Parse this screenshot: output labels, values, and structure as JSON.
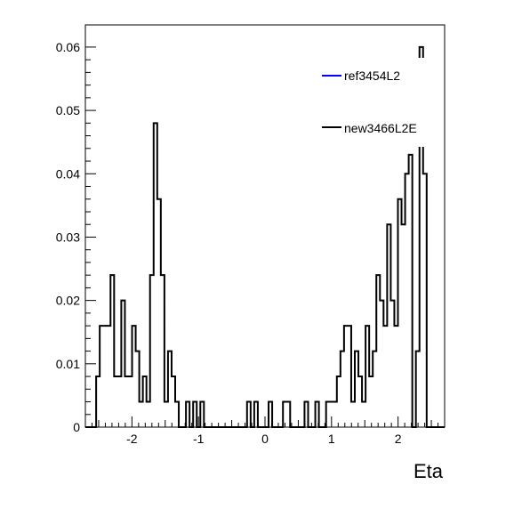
{
  "chart_data": {
    "type": "histogram",
    "xlabel": "Eta",
    "ylabel": "",
    "xlim": [
      -2.7,
      2.7
    ],
    "ylim": [
      0,
      0.0635
    ],
    "x_ticks": [
      -2,
      -1,
      0,
      1,
      2
    ],
    "x_tick_labels": [
      "-2",
      "-1",
      "0",
      "1",
      "2"
    ],
    "y_ticks": [
      0,
      0.01,
      0.02,
      0.03,
      0.04,
      0.05,
      0.06
    ],
    "y_tick_labels": [
      "0",
      "0.01",
      "0.02",
      "0.03",
      "0.04",
      "0.05",
      "0.06"
    ],
    "legend_position": "top-right",
    "bin_width": 0.054,
    "series": [
      {
        "name": "ref3454L2",
        "color": "#0000ff",
        "values": []
      },
      {
        "name": "new3466L2E",
        "color": "#000000",
        "values": [
          [
            -2.485,
            0.008
          ],
          [
            -2.431,
            0.016
          ],
          [
            -2.377,
            0.016
          ],
          [
            -2.323,
            0.016
          ],
          [
            -2.269,
            0.024
          ],
          [
            -2.215,
            0.008
          ],
          [
            -2.161,
            0.008
          ],
          [
            -2.107,
            0.02
          ],
          [
            -2.053,
            0.008
          ],
          [
            -1.999,
            0.008
          ],
          [
            -1.945,
            0.016
          ],
          [
            -1.891,
            0.012
          ],
          [
            -1.837,
            0.004
          ],
          [
            -1.783,
            0.008
          ],
          [
            -1.729,
            0.004
          ],
          [
            -1.675,
            0.024
          ],
          [
            -1.621,
            0.048
          ],
          [
            -1.567,
            0.036
          ],
          [
            -1.513,
            0.024
          ],
          [
            -1.459,
            0.004
          ],
          [
            -1.405,
            0.012
          ],
          [
            -1.351,
            0.008
          ],
          [
            -1.297,
            0.004
          ],
          [
            -1.135,
            0.004
          ],
          [
            -1.027,
            0.004
          ],
          [
            -0.919,
            0.004
          ],
          [
            -0.217,
            0.004
          ],
          [
            -0.109,
            0.004
          ],
          [
            0.107,
            0.004
          ],
          [
            0.323,
            0.004
          ],
          [
            0.377,
            0.004
          ],
          [
            0.647,
            0.004
          ],
          [
            0.809,
            0.004
          ],
          [
            0.971,
            0.004
          ],
          [
            1.025,
            0.004
          ],
          [
            1.079,
            0.004
          ],
          [
            1.133,
            0.008
          ],
          [
            1.187,
            0.012
          ],
          [
            1.241,
            0.016
          ],
          [
            1.295,
            0.016
          ],
          [
            1.349,
            0.004
          ],
          [
            1.403,
            0.012
          ],
          [
            1.457,
            0.008
          ],
          [
            1.511,
            0.004
          ],
          [
            1.565,
            0.016
          ],
          [
            1.619,
            0.008
          ],
          [
            1.673,
            0.012
          ],
          [
            1.727,
            0.024
          ],
          [
            1.781,
            0.02
          ],
          [
            1.835,
            0.016
          ],
          [
            1.889,
            0.032
          ],
          [
            1.943,
            0.02
          ],
          [
            1.997,
            0.016
          ],
          [
            2.051,
            0.036
          ],
          [
            2.105,
            0.032
          ],
          [
            2.159,
            0.04
          ],
          [
            2.213,
            0.043
          ],
          [
            2.321,
            0.012
          ],
          [
            2.375,
            0.06
          ],
          [
            2.429,
            0.04
          ]
        ]
      }
    ]
  }
}
